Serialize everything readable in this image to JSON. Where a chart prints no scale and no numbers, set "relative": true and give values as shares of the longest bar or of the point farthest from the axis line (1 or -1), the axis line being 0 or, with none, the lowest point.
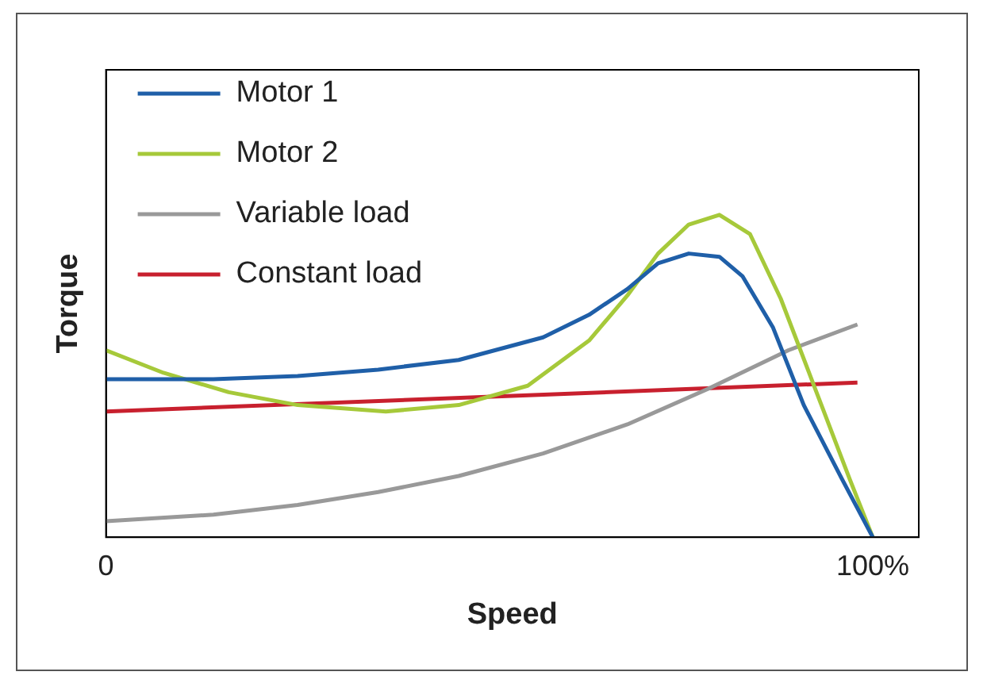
{
  "chart_data": {
    "type": "line",
    "xlabel": "Speed",
    "ylabel": "Torque",
    "relative": true,
    "xlim": [
      0,
      106
    ],
    "xticks": [
      0,
      {
        "value": 100,
        "label": "100%"
      }
    ],
    "tick_labels": "x",
    "grid": false,
    "legend": "top left",
    "marker": "none",
    "line_style": "solid",
    "series": [
      {
        "name": "Motor 1",
        "color": "#1f5fa8",
        "x": [
          0,
          14,
          25,
          35.5,
          46,
          57,
          63,
          68,
          72,
          76,
          80,
          83,
          87,
          91,
          96,
          100
        ],
        "values": [
          0.49,
          0.49,
          0.5,
          0.52,
          0.55,
          0.62,
          0.69,
          0.77,
          0.85,
          0.88,
          0.87,
          0.81,
          0.65,
          0.41,
          0.18,
          0
        ]
      },
      {
        "name": "Motor 2",
        "color": "#a6c93a",
        "x": [
          0,
          7.5,
          16,
          25,
          36.5,
          46,
          55,
          63,
          68,
          72,
          76,
          80,
          84,
          88,
          92.5,
          97,
          100
        ],
        "values": [
          0.58,
          0.51,
          0.45,
          0.41,
          0.39,
          0.41,
          0.47,
          0.61,
          0.75,
          0.88,
          0.97,
          1,
          0.94,
          0.74,
          0.46,
          0.18,
          0
        ]
      },
      {
        "name": "Variable load",
        "color": "#999999",
        "x": [
          0,
          14,
          25,
          35.5,
          46,
          57,
          68,
          78.5,
          89,
          98
        ],
        "values": [
          0.05,
          0.07,
          0.1,
          0.14,
          0.19,
          0.26,
          0.35,
          0.46,
          0.58,
          0.66
        ]
      },
      {
        "name": "Constant load",
        "color": "#c8202e",
        "x": [
          0,
          98
        ],
        "values": [
          0.39,
          0.48
        ]
      }
    ]
  }
}
